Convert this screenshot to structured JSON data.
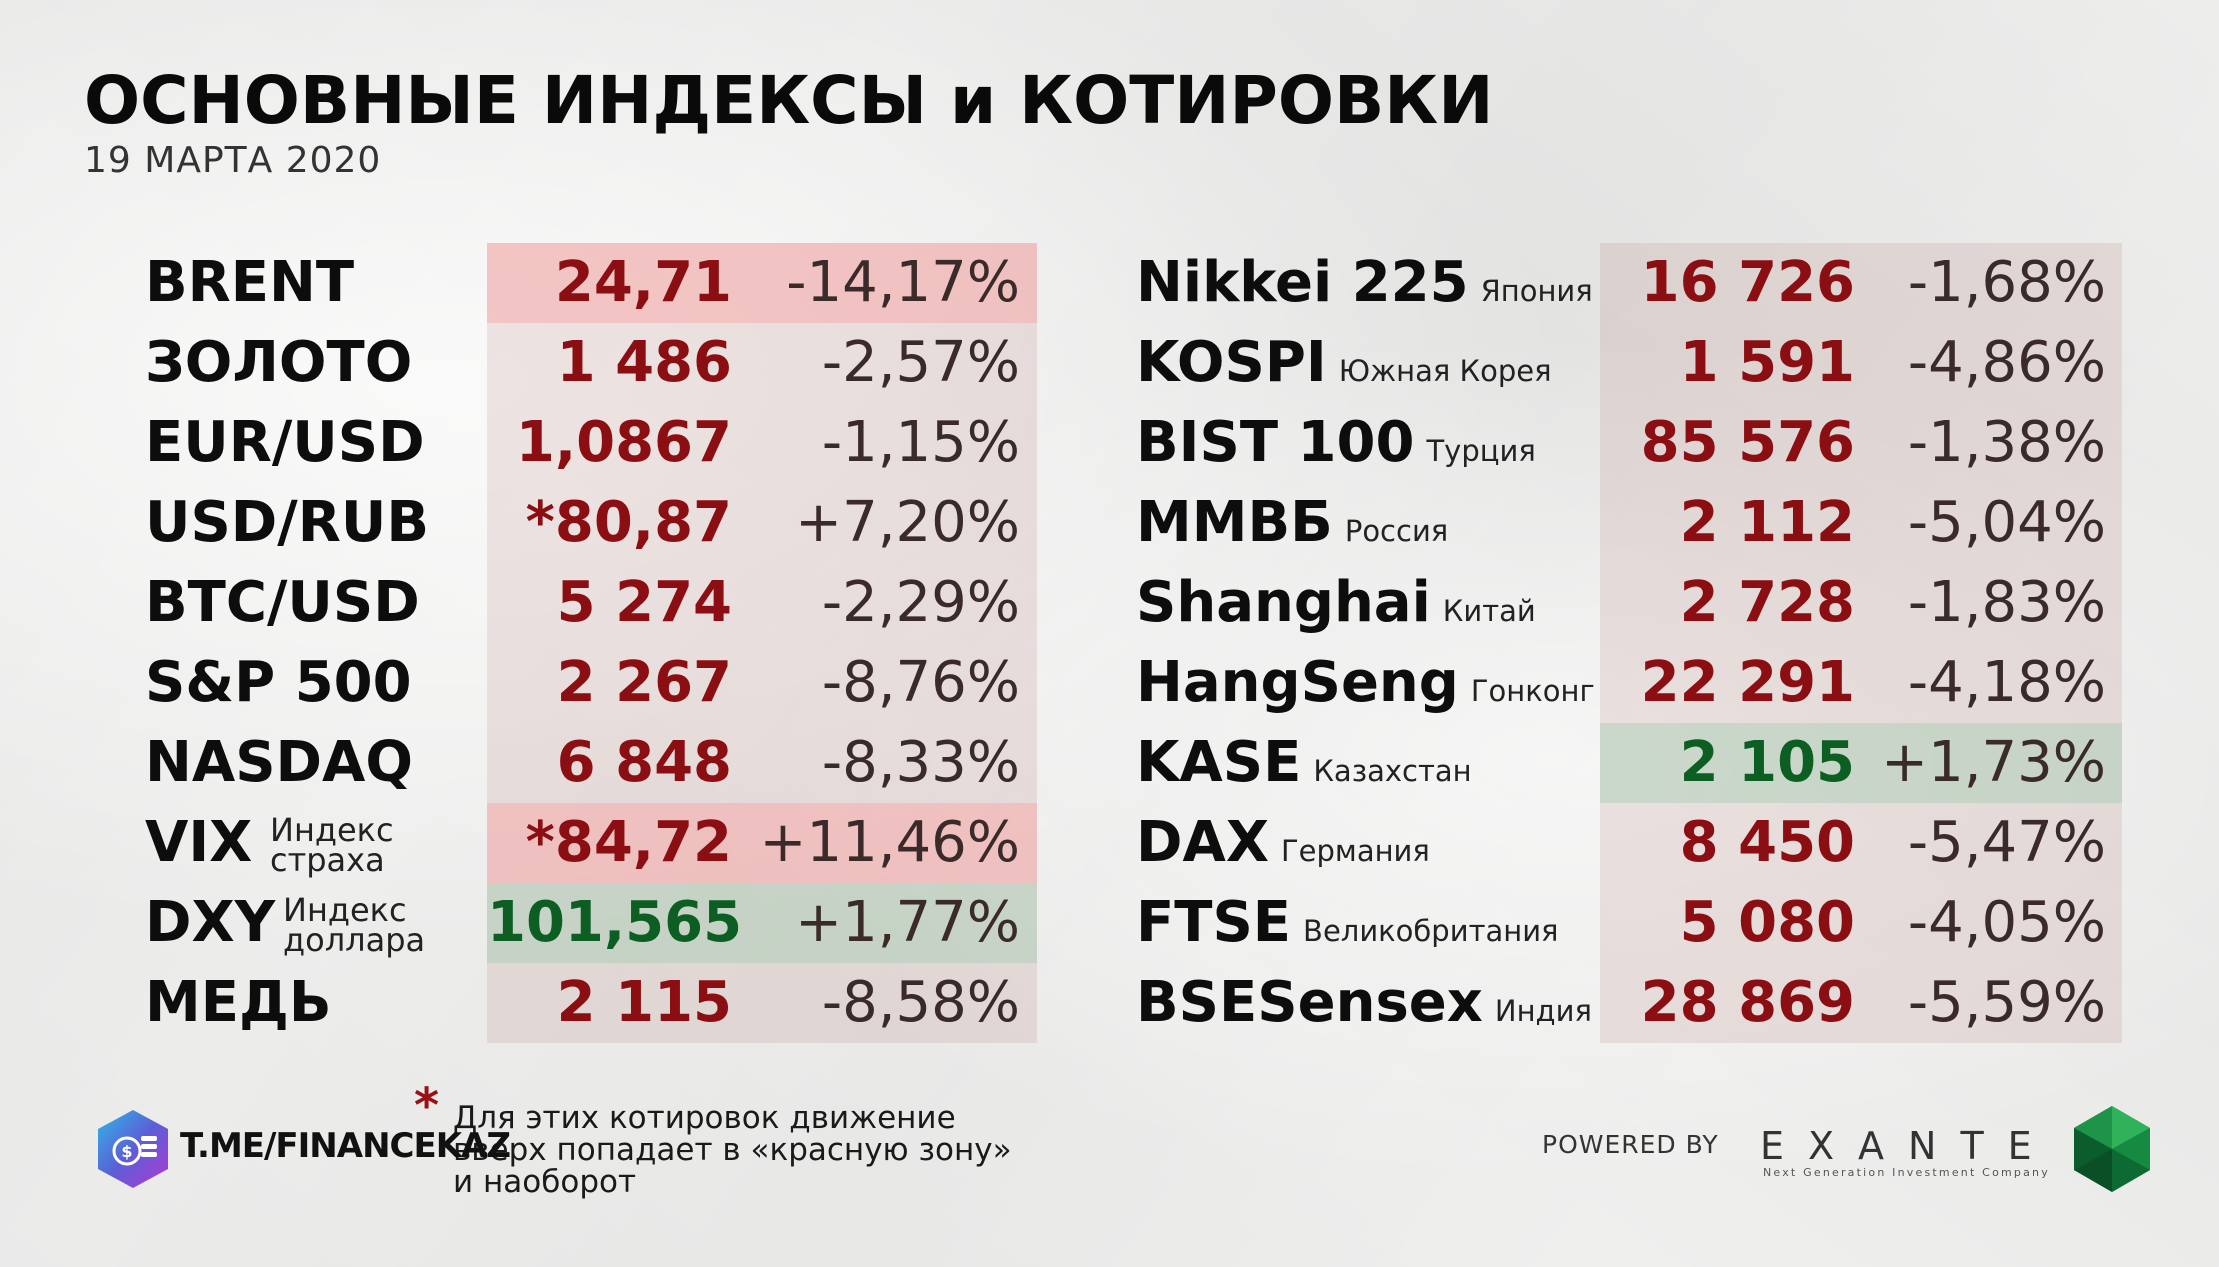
{
  "header": {
    "title": "ОСНОВНЫЕ ИНДЕКСЫ и КОТИРОВКИ",
    "date": "19 МАРТА 2020"
  },
  "left_table": [
    {
      "name": "BRENT",
      "value": "24,71",
      "change": "-14,17%",
      "value_color": "red",
      "highlight": "red"
    },
    {
      "name": "ЗОЛОТО",
      "value": "1 486",
      "change": "-2,57%",
      "value_color": "red",
      "highlight": "none"
    },
    {
      "name": "EUR/USD",
      "value": "1,0867",
      "change": "-1,15%",
      "value_color": "red",
      "highlight": "none"
    },
    {
      "name": "USD/RUB",
      "value": "*80,87",
      "change": "+7,20%",
      "value_color": "red",
      "highlight": "none"
    },
    {
      "name": "BTC/USD",
      "value": "5 274",
      "change": "-2,29%",
      "value_color": "red",
      "highlight": "none"
    },
    {
      "name": "S&P 500",
      "value": "2 267",
      "change": "-8,76%",
      "value_color": "red",
      "highlight": "none"
    },
    {
      "name": "NASDAQ",
      "value": "6 848",
      "change": "-8,33%",
      "value_color": "red",
      "highlight": "none"
    },
    {
      "name": "VIX",
      "sub_line1": "Индекс",
      "sub_line2": "страха",
      "value": "*84,72",
      "change": "+11,46%",
      "value_color": "red",
      "highlight": "red"
    },
    {
      "name": "DXY",
      "sub_line1": "Индекс",
      "sub_line2": "доллара",
      "value": "101,565",
      "change": "+1,77%",
      "value_color": "green",
      "highlight": "green"
    },
    {
      "name": "МЕДЬ",
      "value": "2 115",
      "change": "-8,58%",
      "value_color": "red",
      "highlight": "none"
    }
  ],
  "right_table": [
    {
      "name": "Nikkei 225",
      "country": "Япония",
      "value": "16 726",
      "change": "-1,68%",
      "value_color": "red",
      "highlight": "none"
    },
    {
      "name": "KOSPI",
      "country": "Южная Корея",
      "value": "1 591",
      "change": "-4,86%",
      "value_color": "red",
      "highlight": "none"
    },
    {
      "name": "BIST 100",
      "country": "Турция",
      "value": "85 576",
      "change": "-1,38%",
      "value_color": "red",
      "highlight": "none"
    },
    {
      "name": "ММВБ",
      "country": "Россия",
      "value": "2 112",
      "change": "-5,04%",
      "value_color": "red",
      "highlight": "none"
    },
    {
      "name": "Shanghai",
      "country": "Китай",
      "value": "2 728",
      "change": "-1,83%",
      "value_color": "red",
      "highlight": "none"
    },
    {
      "name": "HangSeng",
      "country": "Гонконг",
      "value": "22 291",
      "change": "-4,18%",
      "value_color": "red",
      "highlight": "none"
    },
    {
      "name": "KASE",
      "country": "Казахстан",
      "value": "2 105",
      "change": "+1,73%",
      "value_color": "green",
      "highlight": "green"
    },
    {
      "name": "DAX",
      "country": "Германия",
      "value": "8 450",
      "change": "-5,47%",
      "value_color": "red",
      "highlight": "none"
    },
    {
      "name": "FTSE",
      "country": "Великобритания",
      "value": "5 080",
      "change": "-4,05%",
      "value_color": "red",
      "highlight": "none"
    },
    {
      "name": "BSESensex",
      "country": "Индия",
      "value": "28 869",
      "change": "-5,59%",
      "value_color": "red",
      "highlight": "none"
    }
  ],
  "footnote": {
    "star": "*",
    "line1": "Для этих котировок движение",
    "line2": "вверх попадает в «красную зону»",
    "line3": "и наоборот"
  },
  "branding": {
    "channel": "T.ME/FINANCEKAZ",
    "powered_by": "POWERED BY",
    "exante": "EXANTE",
    "exante_tagline": "Next Generation Investment Company"
  },
  "colors": {
    "negative": "#8b0e12",
    "positive": "#0c5e22",
    "highlight_red": "#f6c8c8",
    "highlight_green": "#cfe3d5",
    "column_bg": "#e6d9d6"
  },
  "icons": [
    "coin-hexagon-logo-icon",
    "emerald-gem-logo-icon"
  ]
}
